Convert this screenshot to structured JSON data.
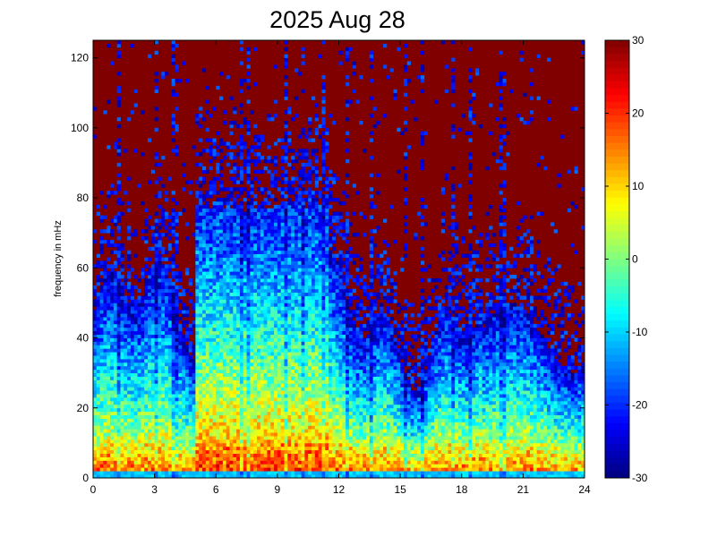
{
  "chart_data": {
    "type": "heatmap",
    "title": "2025 Aug 28",
    "xlabel": "",
    "ylabel": "frequency in mHz",
    "xlim": [
      0,
      24
    ],
    "ylim": [
      0,
      125
    ],
    "x_ticks": [
      "0",
      "3",
      "6",
      "9",
      "12",
      "15",
      "18",
      "21",
      "24"
    ],
    "y_ticks": [
      "0",
      "20",
      "40",
      "60",
      "80",
      "100",
      "120"
    ],
    "colorbar": {
      "colormap": "jet",
      "clim": [
        -30,
        30
      ],
      "ticks": [
        "30",
        "20",
        "10",
        "0",
        "-10",
        "-20",
        "-30"
      ]
    },
    "rows": 125,
    "cols": 144,
    "pattern": {
      "baseline_level": 30,
      "low_freq_power_peak": 18,
      "active_interval_hours": [
        5,
        11.5
      ],
      "active_interval_upper_freq": 80,
      "general_upper_freq_range": [
        40,
        65
      ]
    }
  }
}
